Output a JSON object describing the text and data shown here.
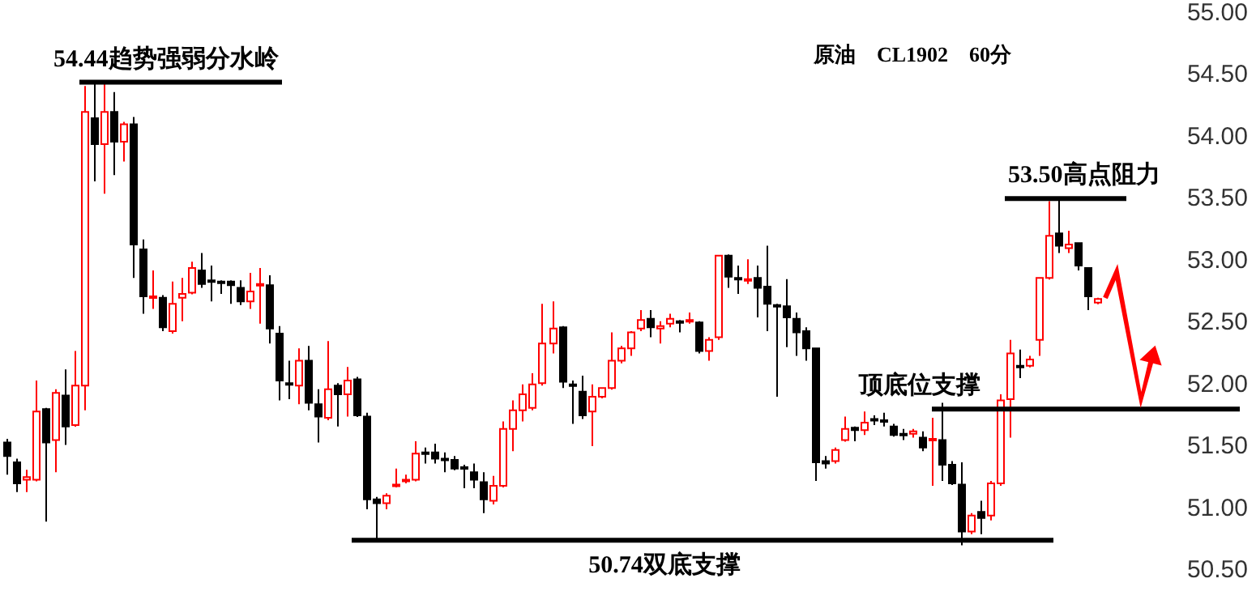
{
  "chart_data": {
    "type": "candlestick",
    "title": "原油　CL1902　60分",
    "categories": [
      null,
      null,
      null,
      null,
      null,
      null,
      null,
      null,
      null,
      null,
      null,
      null,
      null,
      null,
      null,
      null,
      null,
      null,
      null,
      null,
      null,
      null,
      null,
      null,
      null,
      null,
      null,
      null,
      null,
      null,
      null,
      null,
      null,
      null,
      null,
      null,
      null,
      null,
      null,
      null,
      null,
      null,
      null,
      null,
      null,
      null,
      null,
      null,
      null,
      null,
      null,
      null,
      null,
      null,
      null,
      null,
      null,
      null,
      null,
      null,
      null,
      null,
      null,
      null,
      null,
      null,
      null,
      null,
      null,
      null,
      null,
      null,
      null,
      null,
      null,
      null,
      null,
      null,
      null,
      null,
      null,
      null,
      null,
      null,
      null,
      null,
      null,
      null,
      null,
      null,
      null,
      null,
      null,
      null,
      null,
      null,
      null,
      null,
      null,
      null,
      null,
      null,
      null,
      null,
      null,
      null,
      null,
      null,
      null,
      null,
      null,
      null,
      null
    ],
    "ohlc": [
      [
        51.53,
        51.56,
        51.27,
        51.42
      ],
      [
        51.37,
        51.4,
        51.13,
        51.2
      ],
      [
        51.23,
        51.31,
        51.13,
        51.25
      ],
      [
        51.23,
        52.03,
        51.23,
        51.78
      ],
      [
        51.8,
        51.81,
        50.89,
        51.53
      ],
      [
        51.55,
        51.96,
        51.29,
        51.93
      ],
      [
        51.91,
        52.12,
        51.51,
        51.66
      ],
      [
        51.67,
        52.27,
        51.66,
        51.99
      ],
      [
        51.99,
        54.41,
        51.79,
        54.2
      ],
      [
        54.15,
        54.44,
        53.64,
        53.94
      ],
      [
        53.94,
        54.44,
        53.54,
        54.2
      ],
      [
        54.2,
        54.36,
        53.69,
        53.96
      ],
      [
        53.96,
        54.12,
        53.8,
        54.1
      ],
      [
        54.1,
        54.16,
        52.86,
        53.13
      ],
      [
        53.09,
        53.17,
        52.57,
        52.71
      ],
      [
        52.7,
        52.92,
        52.61,
        52.71
      ],
      [
        52.7,
        52.72,
        52.43,
        52.46
      ],
      [
        52.43,
        52.83,
        52.41,
        52.65
      ],
      [
        52.7,
        52.86,
        52.51,
        52.73
      ],
      [
        52.74,
        52.99,
        52.74,
        52.94
      ],
      [
        52.92,
        53.06,
        52.78,
        52.81
      ],
      [
        52.84,
        52.96,
        52.67,
        52.83
      ],
      [
        52.83,
        52.84,
        52.73,
        52.82
      ],
      [
        52.83,
        52.84,
        52.65,
        52.8
      ],
      [
        52.78,
        52.84,
        52.64,
        52.67
      ],
      [
        52.67,
        52.9,
        52.61,
        52.75
      ],
      [
        52.8,
        52.94,
        52.49,
        52.81
      ],
      [
        52.8,
        52.88,
        52.33,
        52.45
      ],
      [
        52.41,
        52.47,
        51.87,
        52.03
      ],
      [
        52.01,
        52.19,
        51.88,
        52.0
      ],
      [
        51.99,
        52.29,
        51.84,
        52.19
      ],
      [
        52.19,
        52.31,
        51.79,
        51.85
      ],
      [
        51.84,
        51.96,
        51.53,
        51.74
      ],
      [
        51.73,
        52.35,
        51.71,
        51.96
      ],
      [
        51.99,
        52.01,
        51.66,
        51.92
      ],
      [
        51.92,
        52.14,
        51.74,
        52.03
      ],
      [
        52.04,
        52.06,
        51.74,
        51.75
      ],
      [
        51.74,
        51.77,
        50.99,
        51.07
      ],
      [
        51.07,
        51.09,
        50.74,
        51.04
      ],
      [
        51.04,
        51.12,
        50.99,
        51.1
      ],
      [
        51.18,
        51.32,
        51.17,
        51.19
      ],
      [
        51.22,
        51.27,
        51.2,
        51.23
      ],
      [
        51.23,
        51.54,
        51.22,
        51.44
      ],
      [
        51.45,
        51.49,
        51.36,
        51.44
      ],
      [
        51.45,
        51.52,
        51.36,
        51.4
      ],
      [
        51.4,
        51.45,
        51.29,
        51.39
      ],
      [
        51.39,
        51.42,
        51.31,
        51.32
      ],
      [
        51.33,
        51.35,
        51.16,
        51.32
      ],
      [
        51.29,
        51.36,
        51.16,
        51.23
      ],
      [
        51.21,
        51.29,
        50.96,
        51.07
      ],
      [
        51.06,
        51.26,
        51.03,
        51.18
      ],
      [
        51.18,
        51.7,
        51.18,
        51.64
      ],
      [
        51.64,
        51.87,
        51.46,
        51.79
      ],
      [
        51.79,
        52.0,
        51.7,
        51.92
      ],
      [
        51.81,
        52.09,
        51.79,
        52.0
      ],
      [
        52.01,
        52.65,
        51.99,
        52.33
      ],
      [
        52.33,
        52.67,
        52.25,
        52.45
      ],
      [
        52.46,
        52.47,
        51.97,
        52.02
      ],
      [
        52.0,
        52.03,
        51.68,
        51.99
      ],
      [
        51.94,
        52.07,
        51.72,
        51.75
      ],
      [
        51.78,
        52.0,
        51.5,
        51.9
      ],
      [
        51.9,
        51.97,
        51.9,
        51.97
      ],
      [
        51.97,
        52.42,
        51.96,
        52.19
      ],
      [
        52.19,
        52.31,
        52.17,
        52.29
      ],
      [
        52.29,
        52.43,
        52.23,
        52.42
      ],
      [
        52.45,
        52.6,
        52.43,
        52.52
      ],
      [
        52.53,
        52.6,
        52.38,
        52.46
      ],
      [
        52.45,
        52.51,
        52.33,
        52.47
      ],
      [
        52.49,
        52.57,
        52.46,
        52.53
      ],
      [
        52.51,
        52.52,
        52.42,
        52.5
      ],
      [
        52.51,
        52.58,
        52.49,
        52.52
      ],
      [
        52.5,
        52.51,
        52.25,
        52.27
      ],
      [
        52.27,
        52.38,
        52.19,
        52.36
      ],
      [
        52.38,
        53.04,
        52.36,
        53.04
      ],
      [
        53.04,
        53.05,
        52.78,
        52.87
      ],
      [
        52.86,
        52.96,
        52.73,
        52.85
      ],
      [
        52.84,
        53.01,
        52.81,
        52.85
      ],
      [
        52.86,
        52.96,
        52.54,
        52.78
      ],
      [
        52.79,
        53.12,
        52.43,
        52.65
      ],
      [
        52.64,
        52.65,
        51.9,
        52.63
      ],
      [
        52.63,
        52.85,
        52.3,
        52.54
      ],
      [
        52.53,
        52.58,
        52.23,
        52.42
      ],
      [
        52.43,
        52.46,
        52.19,
        52.29
      ],
      [
        52.29,
        52.29,
        51.22,
        51.37
      ],
      [
        51.38,
        51.42,
        51.32,
        51.36
      ],
      [
        51.38,
        51.49,
        51.36,
        51.47
      ],
      [
        51.55,
        51.74,
        51.54,
        51.64
      ],
      [
        51.65,
        51.66,
        51.54,
        51.63
      ],
      [
        51.63,
        51.78,
        51.59,
        51.69
      ],
      [
        51.72,
        51.75,
        51.67,
        51.71
      ],
      [
        51.71,
        51.77,
        51.66,
        51.7
      ],
      [
        51.66,
        51.68,
        51.59,
        51.59
      ],
      [
        51.6,
        51.64,
        51.55,
        51.59
      ],
      [
        51.6,
        51.64,
        51.57,
        51.62
      ],
      [
        51.57,
        51.62,
        51.46,
        51.49
      ],
      [
        51.55,
        51.73,
        51.18,
        51.56
      ],
      [
        51.55,
        51.85,
        51.22,
        51.35
      ],
      [
        51.35,
        51.38,
        51.19,
        51.2
      ],
      [
        51.19,
        51.37,
        50.7,
        50.81
      ],
      [
        50.81,
        50.96,
        50.79,
        50.94
      ],
      [
        50.97,
        51.06,
        50.79,
        50.92
      ],
      [
        50.94,
        51.22,
        50.9,
        51.2
      ],
      [
        51.2,
        51.92,
        51.18,
        51.87
      ],
      [
        51.88,
        52.36,
        51.57,
        52.25
      ],
      [
        52.15,
        52.28,
        52.05,
        52.14
      ],
      [
        52.15,
        52.23,
        52.14,
        52.2
      ],
      [
        52.36,
        52.86,
        52.23,
        52.86
      ],
      [
        52.86,
        53.48,
        52.86,
        53.2
      ],
      [
        53.22,
        53.5,
        53.06,
        53.12
      ],
      [
        53.1,
        53.24,
        53.06,
        53.13
      ],
      [
        53.14,
        53.14,
        52.92,
        52.96
      ],
      [
        52.94,
        52.94,
        52.6,
        52.71
      ],
      [
        52.66,
        52.7,
        52.66,
        52.69
      ]
    ],
    "colors": [
      "#000000",
      "#000000",
      "#ff0000",
      "#ff0000",
      "#000000",
      "#ff0000",
      "#000000",
      "#ff0000",
      "#ff0000",
      "#000000",
      "#ff0000",
      "#000000",
      "#ff0000",
      "#000000",
      "#000000",
      "#ff0000",
      "#000000",
      "#ff0000",
      "#ff0000",
      "#ff0000",
      "#000000",
      "#000000",
      "#000000",
      "#000000",
      "#000000",
      "#ff0000",
      "#ff0000",
      "#000000",
      "#000000",
      "#000000",
      "#ff0000",
      "#000000",
      "#000000",
      "#ff0000",
      "#000000",
      "#ff0000",
      "#000000",
      "#000000",
      "#000000",
      "#ff0000",
      "#ff0000",
      "#ff0000",
      "#ff0000",
      "#000000",
      "#000000",
      "#000000",
      "#000000",
      "#000000",
      "#000000",
      "#000000",
      "#ff0000",
      "#ff0000",
      "#ff0000",
      "#ff0000",
      "#ff0000",
      "#ff0000",
      "#ff0000",
      "#000000",
      "#000000",
      "#000000",
      "#ff0000",
      "#ff0000",
      "#ff0000",
      "#ff0000",
      "#ff0000",
      "#ff0000",
      "#000000",
      "#ff0000",
      "#ff0000",
      "#000000",
      "#ff0000",
      "#000000",
      "#ff0000",
      "#ff0000",
      "#000000",
      "#000000",
      "#ff0000",
      "#000000",
      "#000000",
      "#000000",
      "#000000",
      "#000000",
      "#000000",
      "#000000",
      "#000000",
      "#ff0000",
      "#ff0000",
      "#000000",
      "#ff0000",
      "#000000",
      "#000000",
      "#000000",
      "#000000",
      "#ff0000",
      "#000000",
      "#ff0000",
      "#000000",
      "#000000",
      "#000000",
      "#ff0000",
      "#000000",
      "#ff0000",
      "#ff0000",
      "#ff0000",
      "#000000",
      "#ff0000",
      "#ff0000",
      "#ff0000",
      "#000000",
      "#ff0000",
      "#000000",
      "#000000",
      "#ff0000"
    ],
    "ylim": [
      50.5,
      55.0
    ],
    "yticks": [
      {
        "value": 50.5,
        "label": "50.50"
      },
      {
        "value": 51,
        "label": "51.00"
      },
      {
        "value": 51.5,
        "label": "51.50"
      },
      {
        "value": 52,
        "label": "52.00"
      },
      {
        "value": 52.5,
        "label": "52.50"
      },
      {
        "value": 53,
        "label": "53.00"
      },
      {
        "value": 53.5,
        "label": "53.50"
      },
      {
        "value": 54,
        "label": "54.00"
      },
      {
        "value": 54.5,
        "label": "54.50"
      },
      {
        "value": 55,
        "label": "55.00"
      }
    ],
    "tick_labels": "y",
    "ref_lines": [
      {
        "axis": "y",
        "value": 54.44,
        "label": "54.44趋势强弱分水岭",
        "color": "#000000"
      },
      {
        "axis": "y",
        "value": 53.5,
        "label": "53.50高点阻力",
        "color": "#000000"
      },
      {
        "axis": "y",
        "value": 51.8,
        "label": "顶底位支撑",
        "color": "#000000"
      },
      {
        "axis": "y",
        "value": 50.74,
        "label": "50.74双底支撑",
        "color": "#000000"
      }
    ]
  }
}
